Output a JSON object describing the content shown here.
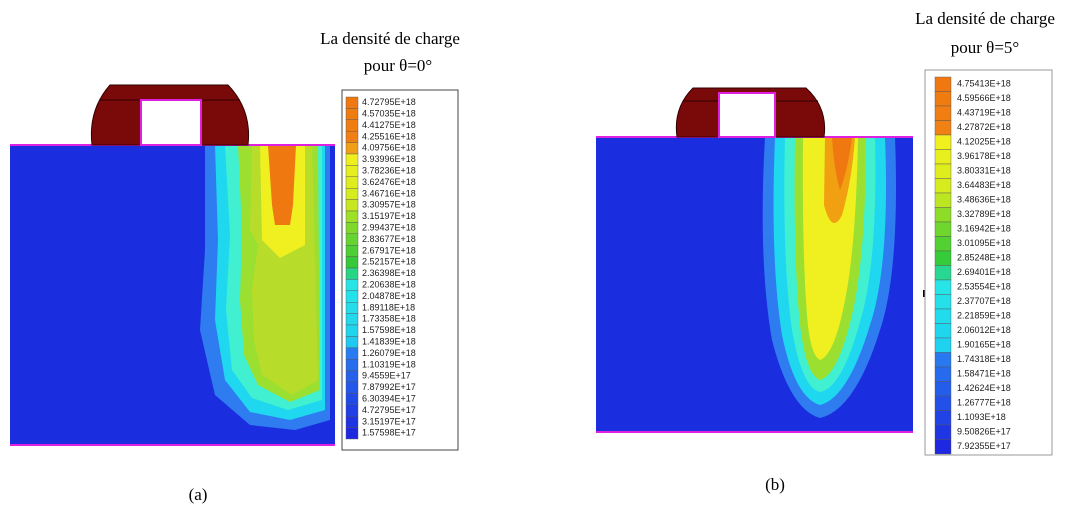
{
  "panels": [
    {
      "title": [
        "La densité de charge",
        "pour θ=0°"
      ],
      "legend": [
        "4.72795E+18",
        "4.57035E+18",
        "4.41275E+18",
        "4.25516E+18",
        "4.09756E+18",
        "3.93996E+18",
        "3.78236E+18",
        "3.62476E+18",
        "3.46716E+18",
        "3.30957E+18",
        "3.15197E+18",
        "2.99437E+18",
        "2.83677E+18",
        "2.67917E+18",
        "2.52157E+18",
        "2.36398E+18",
        "2.20638E+18",
        "2.04878E+18",
        "1.89118E+18",
        "1.73358E+18",
        "1.57598E+18",
        "1.41839E+18",
        "1.26079E+18",
        "1.10319E+18",
        "9.4559E+17",
        "7.87992E+17",
        "6.30394E+17",
        "4.72795E+17",
        "3.15197E+17",
        "1.57598E+17"
      ],
      "caption": "(a)"
    },
    {
      "title": [
        "La densité de charge",
        "pour θ=5°"
      ],
      "legend": [
        "4.75413E+18",
        "4.59566E+18",
        "4.43719E+18",
        "4.27872E+18",
        "4.12025E+18",
        "3.96178E+18",
        "3.80331E+18",
        "3.64483E+18",
        "3.48636E+18",
        "3.32789E+18",
        "3.16942E+18",
        "3.01095E+18",
        "2.85248E+18",
        "2.69401E+18",
        "2.53554E+18",
        "2.37707E+18",
        "2.21859E+18",
        "2.06012E+18",
        "1.90165E+18",
        "1.74318E+18",
        "1.58471E+18",
        "1.42624E+18",
        "1.26777E+18",
        "1.1093E+18",
        "9.50826E+17",
        "7.92355E+17"
      ],
      "caption": "(b)"
    }
  ]
}
